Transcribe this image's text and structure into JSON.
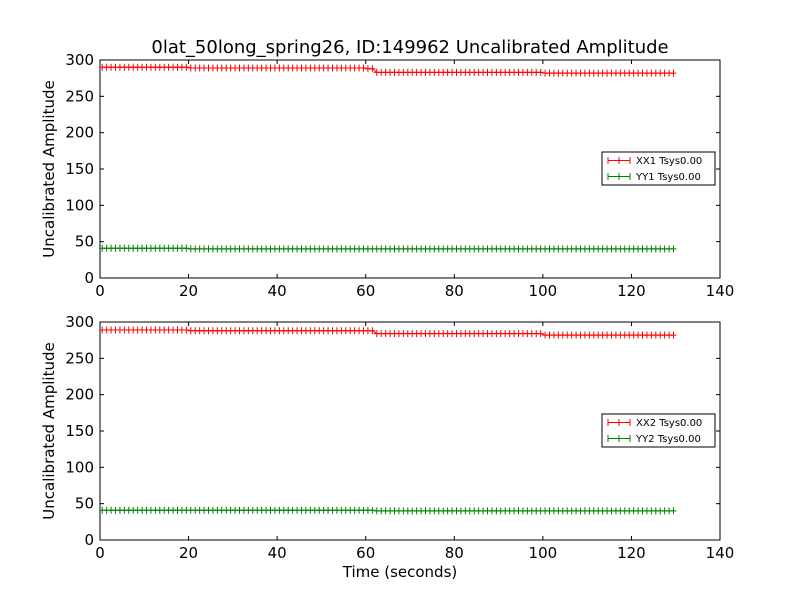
{
  "title": "0lat_50long_spring26, ID:149962 Uncalibrated Amplitude",
  "chart_data": [
    {
      "type": "line",
      "xlabel": "",
      "ylabel": "Uncalibrated Amplitude",
      "xlim": [
        0,
        140
      ],
      "ylim": [
        0,
        300
      ],
      "xticks": [
        "0",
        "20",
        "40",
        "60",
        "80",
        "100",
        "120",
        "140"
      ],
      "yticks": [
        "0",
        "50",
        "100",
        "150",
        "200",
        "250",
        "300"
      ],
      "legend_position": "center-right",
      "series": [
        {
          "name": "XX1 Tsys0.00",
          "color": "#ff0000",
          "marker": "plus",
          "x_start": 0.5,
          "x_end": 130,
          "x_step": 1,
          "segments": [
            {
              "x": [
                0.5,
                20
              ],
              "y": 290
            },
            {
              "x": [
                20,
                60
              ],
              "y": 289
            },
            {
              "x": [
                60,
                62
              ],
              "y": 288
            },
            {
              "x": [
                62,
                100
              ],
              "y": 283
            },
            {
              "x": [
                100,
                130
              ],
              "y": 282
            }
          ]
        },
        {
          "name": "YY1 Tsys0.00",
          "color": "#008000",
          "marker": "plus",
          "x_start": 0.5,
          "x_end": 130,
          "x_step": 1,
          "segments": [
            {
              "x": [
                0.5,
                20
              ],
              "y": 41
            },
            {
              "x": [
                20,
                130
              ],
              "y": 40
            }
          ]
        }
      ]
    },
    {
      "type": "line",
      "xlabel": "Time (seconds)",
      "ylabel": "Uncalibrated Amplitude",
      "xlim": [
        0,
        140
      ],
      "ylim": [
        0,
        300
      ],
      "xticks": [
        "0",
        "20",
        "40",
        "60",
        "80",
        "100",
        "120",
        "140"
      ],
      "yticks": [
        "0",
        "50",
        "100",
        "150",
        "200",
        "250",
        "300"
      ],
      "legend_position": "center-right",
      "series": [
        {
          "name": "XX2 Tsys0.00",
          "color": "#ff0000",
          "marker": "plus",
          "x_start": 0.5,
          "x_end": 130,
          "x_step": 1,
          "segments": [
            {
              "x": [
                0.5,
                20
              ],
              "y": 289
            },
            {
              "x": [
                20,
                62
              ],
              "y": 288
            },
            {
              "x": [
                62,
                100
              ],
              "y": 284
            },
            {
              "x": [
                100,
                130
              ],
              "y": 282
            }
          ]
        },
        {
          "name": "YY2 Tsys0.00",
          "color": "#008000",
          "marker": "plus",
          "x_start": 0.5,
          "x_end": 130,
          "x_step": 1,
          "segments": [
            {
              "x": [
                0.5,
                62
              ],
              "y": 41
            },
            {
              "x": [
                62,
                130
              ],
              "y": 40
            }
          ]
        }
      ]
    }
  ]
}
